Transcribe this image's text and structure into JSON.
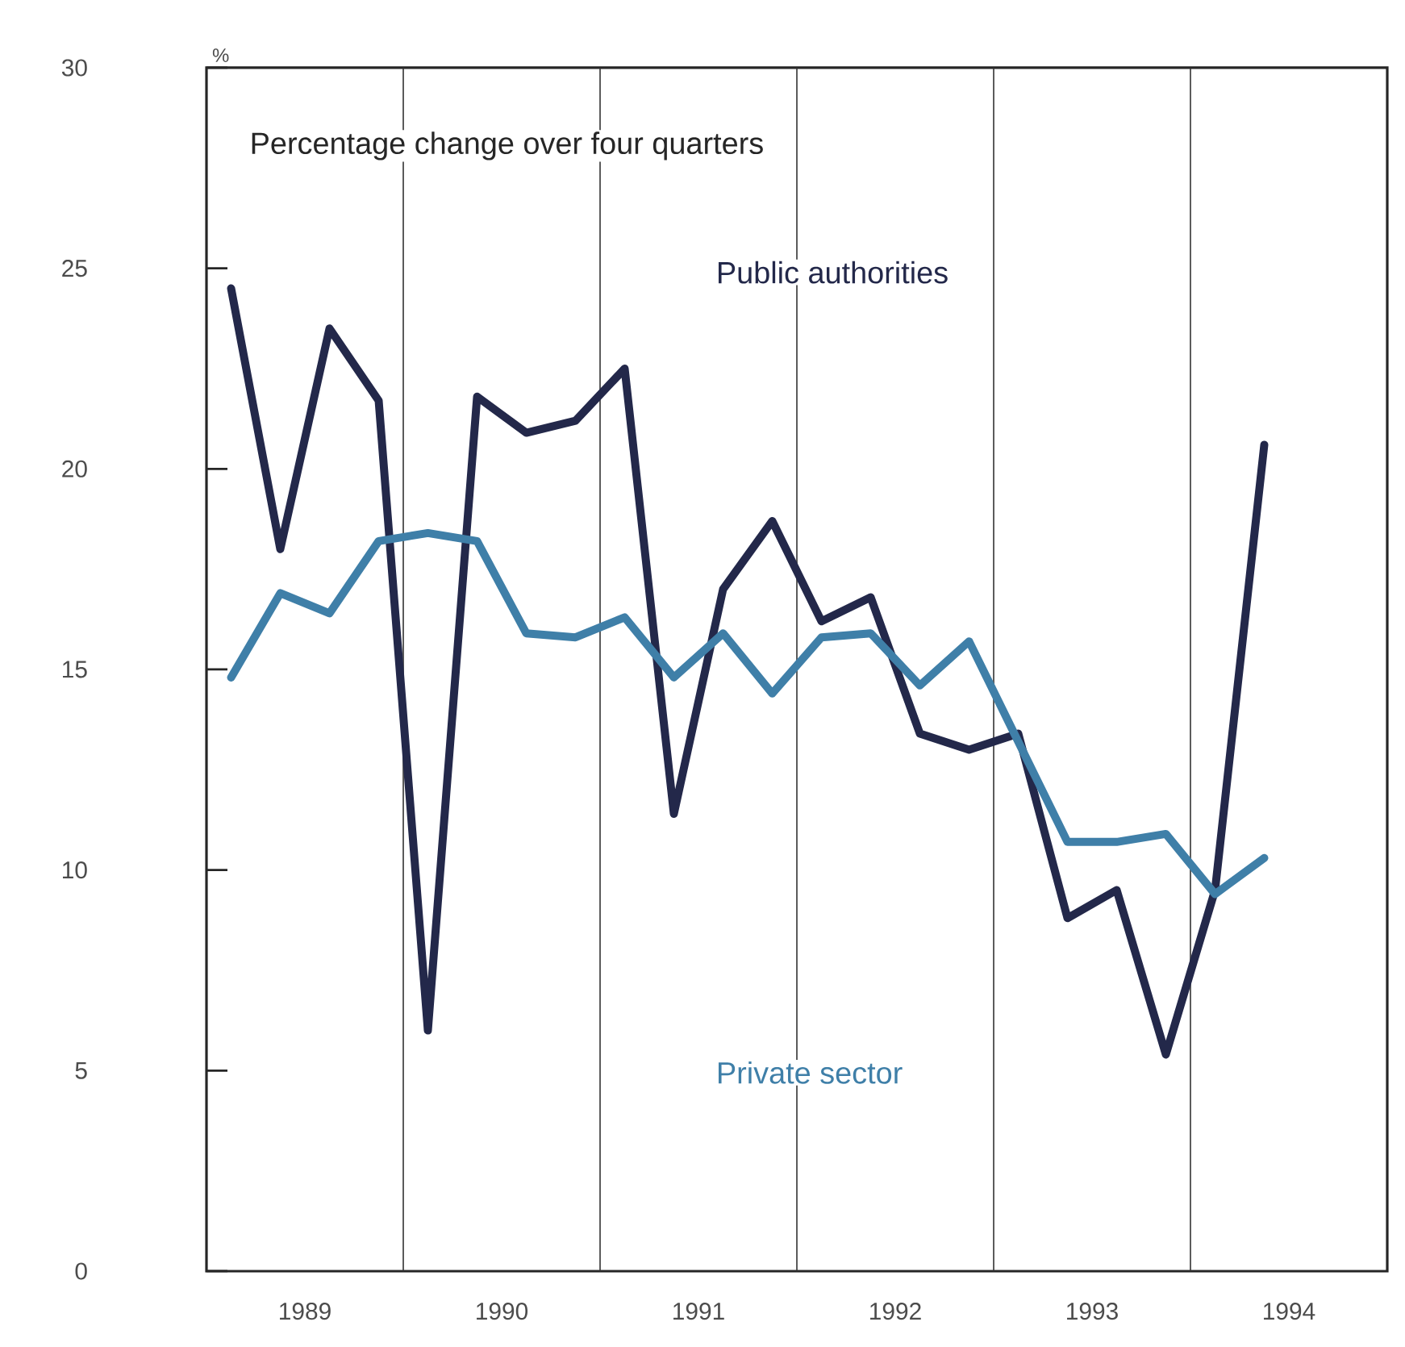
{
  "chart_data": {
    "type": "line",
    "title": "Percentage change over four quarters",
    "ylabel": "%",
    "x": [
      1989.125,
      1989.375,
      1989.625,
      1989.875,
      1990.125,
      1990.375,
      1990.625,
      1990.875,
      1991.125,
      1991.375,
      1991.625,
      1991.875,
      1992.125,
      1992.375,
      1992.625,
      1992.875,
      1993.125,
      1993.375,
      1993.625,
      1993.875,
      1994.125,
      1994.375
    ],
    "series": [
      {
        "name": "Public authorities",
        "color": "#23284a",
        "values": [
          24.5,
          18.0,
          23.5,
          21.7,
          6.0,
          21.8,
          20.9,
          21.2,
          22.5,
          11.4,
          17.0,
          18.7,
          16.2,
          16.8,
          13.4,
          13.0,
          13.4,
          8.8,
          9.5,
          5.4,
          9.5,
          20.6
        ]
      },
      {
        "name": "Private sector",
        "color": "#3f7fa8",
        "values": [
          14.8,
          16.9,
          16.4,
          18.2,
          18.4,
          18.2,
          15.9,
          15.8,
          16.3,
          14.8,
          15.9,
          14.4,
          15.8,
          15.9,
          14.6,
          15.7,
          13.2,
          10.7,
          10.7,
          10.9,
          9.4,
          10.3
        ]
      }
    ],
    "xlim": [
      1989,
      1995
    ],
    "ylim": [
      0,
      30
    ],
    "xticks": [
      {
        "value": 1989.5,
        "label": "1989"
      },
      {
        "value": 1990,
        "label": null
      },
      {
        "value": 1990.5,
        "label": "1990"
      },
      {
        "value": 1991,
        "label": null
      },
      {
        "value": 1991.5,
        "label": "1991"
      },
      {
        "value": 1992,
        "label": null
      },
      {
        "value": 1992.5,
        "label": "1992"
      },
      {
        "value": 1993,
        "label": null
      },
      {
        "value": 1993.5,
        "label": "1993"
      },
      {
        "value": 1994,
        "label": null
      },
      {
        "value": 1994.5,
        "label": "1994"
      }
    ],
    "yticks": [
      0,
      5,
      10,
      15,
      20,
      25,
      30
    ],
    "grid": "x",
    "legend": false,
    "marker": "none",
    "line_style": "solid"
  }
}
